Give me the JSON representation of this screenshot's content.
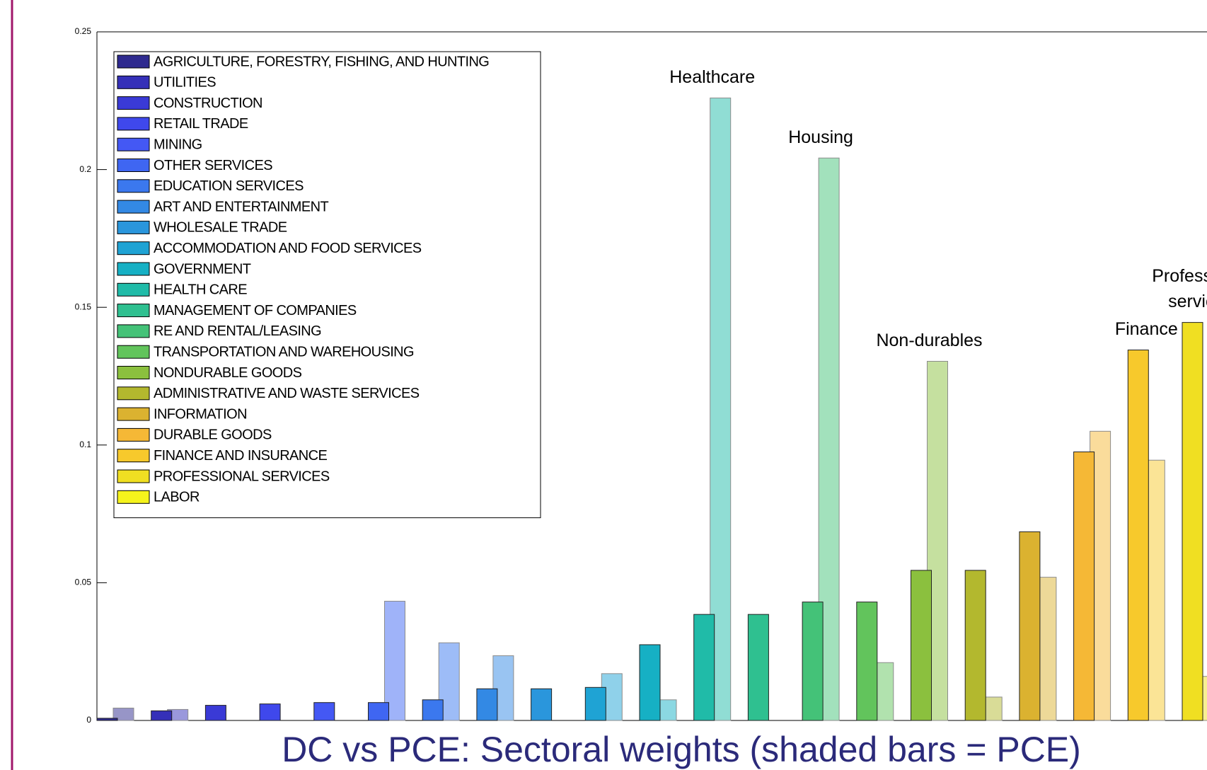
{
  "chart_data": {
    "type": "bar",
    "title": "DC vs PCE: Sectoral weights (shaded bars = PCE)",
    "categories": [
      "AGRICULTURE, FORESTRY, FISHING, AND HUNTING",
      "UTILITIES",
      "CONSTRUCTION",
      "RETAIL TRADE",
      "MINING",
      "OTHER SERVICES",
      "EDUCATION SERVICES",
      "ART AND ENTERTAINMENT",
      "WHOLESALE TRADE",
      "ACCOMMODATION AND FOOD SERVICES",
      "GOVERNMENT",
      "HEALTH CARE",
      "MANAGEMENT OF COMPANIES",
      "RE AND RENTAL/LEASING",
      "TRANSPORTATION AND WAREHOUSING",
      "NONDURABLE GOODS",
      "ADMINISTRATIVE AND WASTE SERVICES",
      "INFORMATION",
      "DURABLE GOODS",
      "FINANCE AND INSURANCE",
      "PROFESSIONAL SERVICES",
      "LABOR"
    ],
    "colors": [
      "#2e2a8f",
      "#3530b8",
      "#3a3ad6",
      "#3f48ec",
      "#4458f4",
      "#3f66f2",
      "#3b78ee",
      "#3389e4",
      "#2a96dc",
      "#1fa3d4",
      "#16b0c4",
      "#20bba8",
      "#2fc090",
      "#44c278",
      "#62c45c",
      "#8bc03e",
      "#b3b82e",
      "#dbb230",
      "#f5b836",
      "#f7c92c",
      "#f0df22",
      "#f5f31c"
    ],
    "series": [
      {
        "values": [
          0.0008,
          0.0035,
          0.0055,
          0.006,
          0.0065,
          0.0065,
          0.0075,
          0.0115,
          0.0115,
          0.012,
          0.0275,
          0.0385,
          0.0385,
          0.043,
          0.043,
          0.0545,
          0.0545,
          0.0685,
          0.0975,
          0.1345,
          0.1445,
          null
        ]
      },
      {
        "values": [
          0.0045,
          0.004,
          null,
          null,
          null,
          0.0433,
          0.0282,
          0.0235,
          null,
          0.017,
          0.0075,
          0.226,
          null,
          0.2042,
          0.021,
          0.1304,
          0.0085,
          0.052,
          0.105,
          0.0945,
          0.016,
          null
        ],
        "shade": 0.5
      }
    ],
    "ylim": [
      0,
      0.25
    ],
    "yticks": [
      0,
      0.05,
      0.1,
      0.15,
      0.2,
      0.25
    ],
    "legend": "upper left",
    "annotations": [
      {
        "lines": [
          "Healthcare"
        ],
        "category": "HEALTH CARE"
      },
      {
        "lines": [
          "Housing"
        ],
        "category": "RE AND RENTAL/LEASING"
      },
      {
        "lines": [
          "Non-durables"
        ],
        "category": "NONDURABLE GOODS"
      },
      {
        "lines": [
          "Finance"
        ],
        "category": "FINANCE AND INSURANCE"
      },
      {
        "lines": [
          "Professional",
          "services"
        ],
        "category": "PROFESSIONAL SERVICES"
      }
    ]
  }
}
